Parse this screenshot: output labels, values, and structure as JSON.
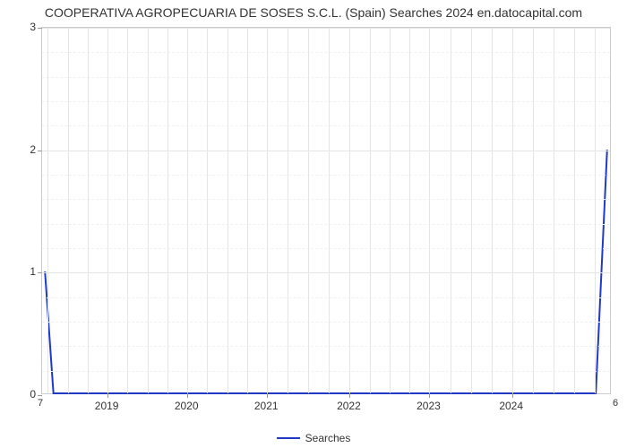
{
  "chart": {
    "type": "line",
    "title": "COOPERATIVA AGROPECUARIA DE SOSES S.C.L. (Spain) Searches 2024 en.datocapital.com",
    "title_fontsize": 14,
    "title_color": "#333333",
    "background_color": "#ffffff",
    "plot_border_color": "#cccccc",
    "grid_color": "#e5e5e5",
    "y_axis": {
      "min": 0,
      "max": 3,
      "ticks": [
        0,
        1,
        2,
        3
      ],
      "label_fontsize": 12,
      "label_color": "#333333"
    },
    "x_axis": {
      "ticks": [
        "2019",
        "2020",
        "2021",
        "2022",
        "2023",
        "2024"
      ],
      "tick_positions_pct": [
        11.5,
        25.5,
        39.5,
        54,
        68,
        82.5
      ],
      "minor_grid_count_between": 3,
      "label_fontsize": 12,
      "label_color": "#333333"
    },
    "series": {
      "name": "Searches",
      "color": "#2039c7",
      "line_width": 2,
      "points_pct": [
        {
          "x": 0.5,
          "y_val": 1.0
        },
        {
          "x": 2.0,
          "y_val": 0.0
        },
        {
          "x": 97.5,
          "y_val": 0.0
        },
        {
          "x": 99.5,
          "y_val": 2.0
        }
      ]
    },
    "corner_labels": {
      "bottom_left": "7",
      "bottom_right": "6",
      "fontsize": 11,
      "color": "#333333"
    },
    "legend": {
      "label": "Searches",
      "line_color": "#2039c7",
      "fontsize": 12
    }
  }
}
